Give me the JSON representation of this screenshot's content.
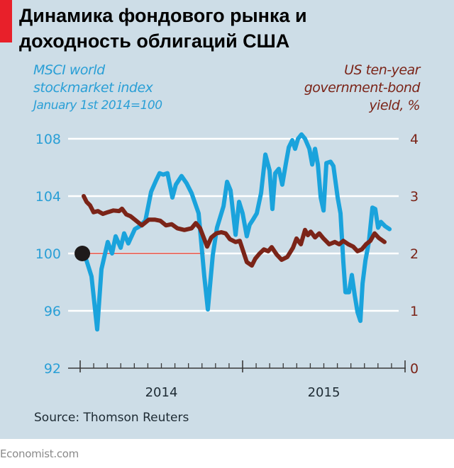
{
  "title_lines": [
    "Динамика фондового рынка и",
    "доходность облигаций США"
  ],
  "left_label": {
    "line1": "MSCI world",
    "line2": "stockmarket index",
    "line3": "January 1st 2014=100"
  },
  "right_label": {
    "line1": "US ten-year",
    "line2": "government-bond",
    "line3": "yield, %"
  },
  "source": "Source: Thomson Reuters",
  "brand": "Economist.com",
  "colors": {
    "background": "#cddde7",
    "stock_line": "#1aa3dc",
    "yield_line": "#7b2418",
    "reference_line": "#e0483d",
    "accent_tab": "#e8202a",
    "gridline": "#ffffff"
  },
  "chart_data": {
    "type": "line",
    "title": "Динамика фондового рынка и доходность облигаций США",
    "xlabel": "",
    "x_unit": "months since January 1st 2014",
    "xlim": [
      0,
      24
    ],
    "x_ticks": [
      {
        "label": "2014",
        "center": 6
      },
      {
        "label": "2015",
        "center": 18
      }
    ],
    "grid": true,
    "left_axis": {
      "label": "MSCI world stockmarket index, January 1st 2014=100",
      "ylim": [
        92,
        108
      ],
      "ticks": [
        92,
        96,
        100,
        104,
        108
      ]
    },
    "right_axis": {
      "label": "US ten-year government-bond yield, %",
      "ylim": [
        0,
        4
      ],
      "ticks": [
        0,
        1,
        2,
        3,
        4
      ]
    },
    "reference": {
      "label": "100",
      "value": 100,
      "x_start": 0.16,
      "x_end": 9.2
    },
    "series": [
      {
        "name": "MSCI world stockmarket index",
        "axis": "left",
        "x": [
          0.16,
          0.47,
          0.84,
          1.26,
          1.57,
          2.04,
          2.36,
          2.62,
          2.99,
          3.25,
          3.56,
          4.04,
          4.4,
          4.82,
          5.24,
          5.61,
          5.87,
          6.13,
          6.45,
          6.81,
          7.07,
          7.49,
          7.86,
          8.23,
          8.75,
          9.17,
          9.43,
          9.8,
          10.11,
          10.59,
          10.85,
          11.11,
          11.48,
          11.74,
          12.0,
          12.31,
          12.52,
          12.73,
          13.05,
          13.36,
          13.68,
          13.99,
          14.2,
          14.41,
          14.67,
          14.93,
          15.2,
          15.41,
          15.67,
          15.88,
          16.09,
          16.35,
          16.61,
          16.93,
          17.14,
          17.35,
          17.56,
          17.77,
          17.98,
          18.19,
          18.5,
          18.71,
          19.02,
          19.23,
          19.44,
          19.6,
          19.86,
          20.07,
          20.28,
          20.49,
          20.7,
          20.86,
          21.07,
          21.33,
          21.59,
          21.8,
          22.01,
          22.22,
          22.53,
          22.85
        ],
        "values": [
          100,
          99.5,
          98.4,
          94.7,
          98.9,
          100.8,
          100,
          101.2,
          100.4,
          101.4,
          100.7,
          101.7,
          101.9,
          102.3,
          104.3,
          105.1,
          105.6,
          105.5,
          105.6,
          103.9,
          104.8,
          105.4,
          104.9,
          104.2,
          102.8,
          98.4,
          96.1,
          99.9,
          101.8,
          103.3,
          105,
          104.4,
          101.3,
          103.6,
          102.8,
          101.2,
          102,
          102.3,
          102.8,
          104.2,
          106.9,
          105.8,
          103.1,
          105.6,
          105.9,
          104.8,
          106.3,
          107.4,
          107.9,
          107.3,
          108,
          108.3,
          108,
          107.3,
          106.2,
          107.3,
          106.2,
          103.9,
          103,
          106.3,
          106.4,
          106.1,
          103.9,
          102.8,
          99.4,
          97.3,
          97.3,
          98.5,
          97.1,
          95.9,
          95.3,
          97.9,
          99.5,
          100.8,
          103.2,
          103.1,
          101.8,
          102.2,
          101.9,
          101.7
        ]
      },
      {
        "name": "US ten-year government-bond yield, %",
        "axis": "right",
        "x": [
          0.26,
          0.47,
          0.73,
          0.99,
          1.31,
          1.68,
          2.04,
          2.46,
          2.88,
          3.09,
          3.41,
          3.72,
          4.14,
          4.56,
          5.08,
          5.5,
          5.92,
          6.34,
          6.76,
          7.18,
          7.7,
          8.23,
          8.54,
          8.86,
          9.17,
          9.38,
          9.69,
          10.06,
          10.43,
          10.74,
          11.06,
          11.48,
          11.79,
          12.0,
          12.31,
          12.68,
          12.94,
          13.26,
          13.57,
          13.89,
          14.15,
          14.52,
          14.88,
          15.3,
          15.72,
          15.98,
          16.3,
          16.61,
          16.82,
          17.03,
          17.35,
          17.66,
          17.98,
          18.4,
          18.81,
          19.13,
          19.44,
          19.81,
          20.17,
          20.49,
          20.8,
          21.12,
          21.43,
          21.75,
          22.06,
          22.48
        ],
        "values": [
          3.0,
          2.9,
          2.84,
          2.72,
          2.74,
          2.69,
          2.72,
          2.75,
          2.74,
          2.78,
          2.68,
          2.65,
          2.57,
          2.49,
          2.59,
          2.59,
          2.57,
          2.49,
          2.51,
          2.44,
          2.41,
          2.44,
          2.53,
          2.44,
          2.25,
          2.12,
          2.28,
          2.35,
          2.37,
          2.35,
          2.25,
          2.2,
          2.22,
          2.07,
          1.85,
          1.79,
          1.91,
          2.0,
          2.07,
          2.04,
          2.11,
          1.98,
          1.89,
          1.94,
          2.1,
          2.26,
          2.16,
          2.41,
          2.32,
          2.38,
          2.28,
          2.35,
          2.26,
          2.16,
          2.2,
          2.16,
          2.22,
          2.16,
          2.12,
          2.04,
          2.07,
          2.16,
          2.22,
          2.35,
          2.27,
          2.2
        ]
      }
    ],
    "marker": {
      "label": "start point",
      "x": 0.16,
      "value": 100
    }
  }
}
